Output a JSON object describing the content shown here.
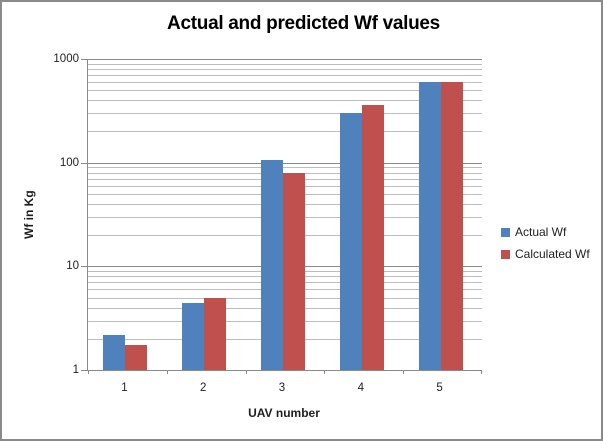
{
  "chart_data": {
    "type": "bar",
    "title": "Actual and predicted Wf values",
    "xlabel": "UAV number",
    "ylabel": "Wf in Kg",
    "categories": [
      "1",
      "2",
      "3",
      "4",
      "5"
    ],
    "series": [
      {
        "name": "Actual Wf",
        "color": "#4F81BD",
        "values": [
          2.2,
          4.4,
          105,
          300,
          600
        ]
      },
      {
        "name": "Calculated Wf",
        "color": "#C0504D",
        "values": [
          1.75,
          4.9,
          80,
          360,
          595
        ]
      }
    ],
    "y_axis": {
      "scale": "log",
      "min": 1,
      "max": 1000,
      "tick_labels": [
        "1",
        "10",
        "100",
        "1000"
      ]
    },
    "x_axis": {
      "tick_labels": [
        "1",
        "2",
        "3",
        "4",
        "5"
      ]
    },
    "legend": {
      "position": "right",
      "entries": [
        "Actual Wf",
        "Calculated Wf"
      ]
    },
    "grid": {
      "minor_gridlines": true,
      "major_gridlines": true
    },
    "style": {
      "series_actual_color": "#4F81BD",
      "series_calculated_color": "#C0504D",
      "grid_minor_color": "#BDBDBD",
      "grid_major_color": "#8A8A8A",
      "axis_line_color": "#8A8A8A",
      "frame_border_color": "#8A8A8A",
      "text_color": "#1F1F1F",
      "background_color": "#FFFFFF"
    }
  }
}
